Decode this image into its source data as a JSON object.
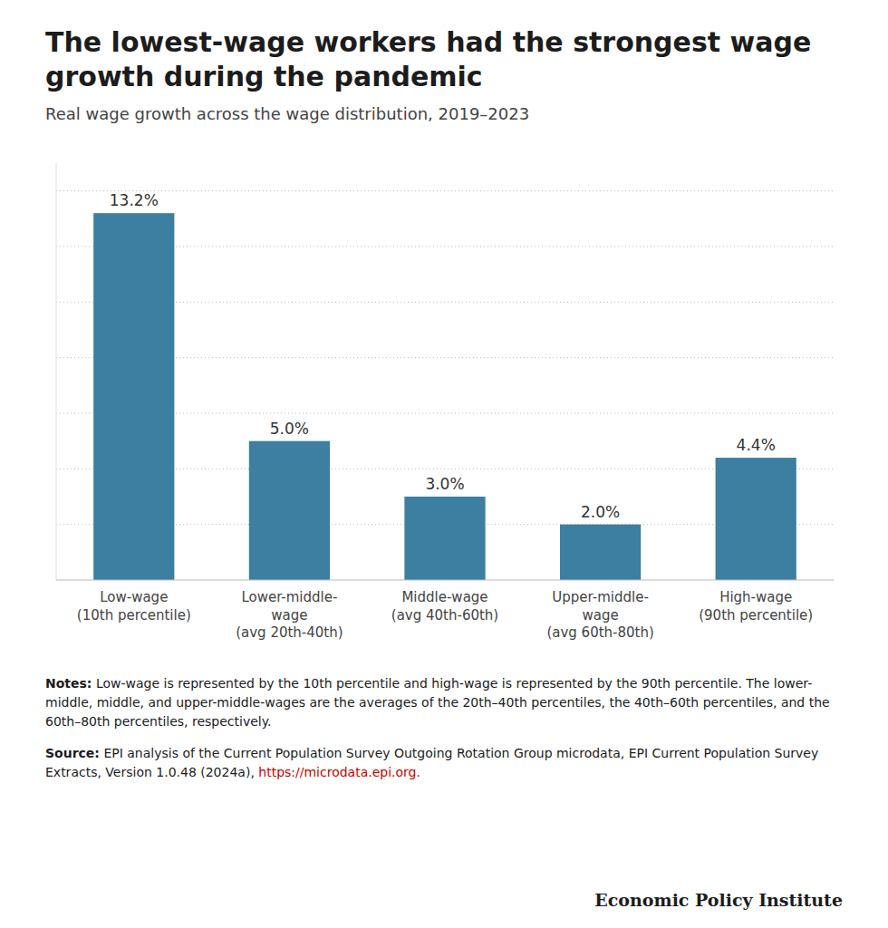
{
  "chart_data": {
    "type": "bar",
    "title": "The lowest-wage workers had the strongest wage\ngrowth during the pandemic",
    "subtitle": "Real wage growth across the wage distribution, 2019–2023",
    "categories": [
      "Low-wage\n(10th percentile)",
      "Lower-middle-\nwage\n(avg 20th-40th)",
      "Middle-wage\n(avg 40th-60th)",
      "Upper-middle-\nwage\n(avg 60th-80th)",
      "High-wage\n(90th percentile)"
    ],
    "values": [
      13.2,
      5.0,
      3.0,
      2.0,
      4.4
    ],
    "value_labels": [
      "13.2%",
      "5.0%",
      "3.0%",
      "2.0%",
      "4.4%"
    ],
    "data_labels": true,
    "color": "#3d7fa0",
    "ylim": [
      0,
      15
    ],
    "yticks": [
      2,
      4,
      6,
      8,
      10,
      12,
      14
    ],
    "grid": true,
    "tick_labels": "x",
    "annotations": [
      "Notes:",
      " Low-wage is represented by the 10th percentile and high-wage is represented by the 90th percentile. The lower-middle, middle, and upper-middle-wages are the averages of the 20th–40th percentiles, the 40th–60th percentiles, and the 60th–80th percentiles, respectively.",
      "Source:",
      " EPI analysis of the Current Population Survey Outgoing Rotation Group microdata, EPI Current Population Survey Extracts, Version 1.0.48 (2024a), ",
      "https://microdata.epi.org.",
      "Economic Policy Institute"
    ]
  }
}
